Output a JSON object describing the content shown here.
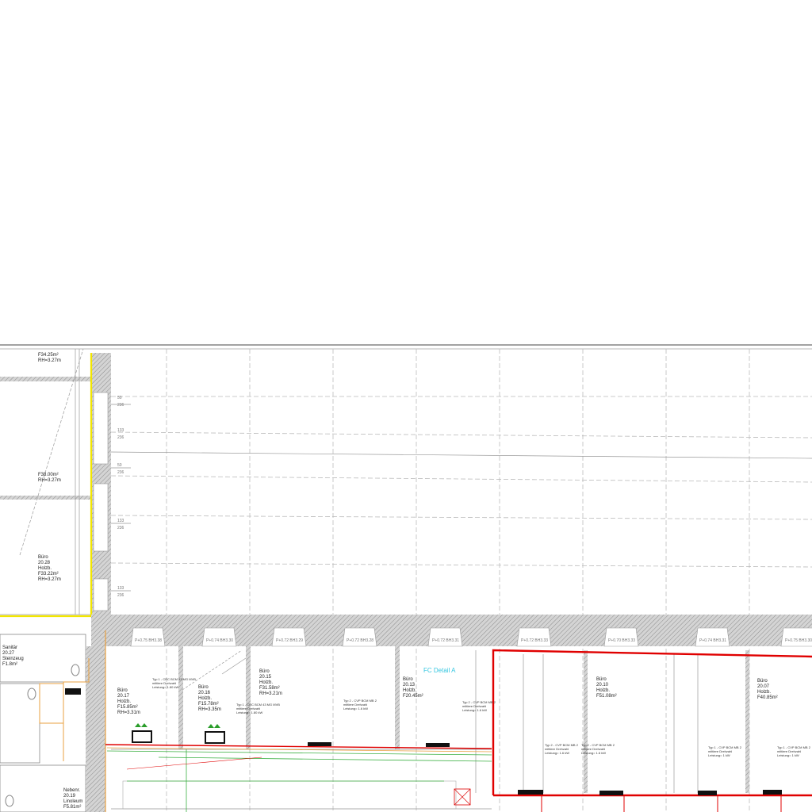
{
  "drawing": {
    "colors": {
      "wall_hatch": "#9a9a9a",
      "boundary_yellow": "#f2e600",
      "detail_red": "#e00000",
      "duct_green": "#3cb043",
      "pipe_orange": "#e8a040",
      "note_blue": "#1a7fd0",
      "detail_cyan": "#33c6e0"
    },
    "detail_label": "FC Detail A",
    "rooms": [
      {
        "name": "Büro",
        "number": "20.17",
        "floor": "Holzb.",
        "area": "F15.85m²",
        "height": "RH=3.31m"
      },
      {
        "name": "Büro",
        "number": "20.16",
        "floor": "Holzb.",
        "area": "F15.78m²",
        "height": "RH=3.35m"
      },
      {
        "name": "Büro",
        "number": "20.15",
        "floor": "Holzb.",
        "area": "F31.58m²",
        "height": "RH=3.21m"
      },
      {
        "name": "Büro",
        "number": "20.13",
        "floor": "Holzb.",
        "area": "F20.45m²",
        "height": ""
      },
      {
        "name": "Büro",
        "number": "20.10",
        "floor": "Holzb.",
        "area": "F51.08m²",
        "height": ""
      },
      {
        "name": "Büro",
        "number": "20.07",
        "floor": "Holzb.",
        "area": "F40.85m²",
        "height": ""
      },
      {
        "name": "Büro",
        "number": "20.28",
        "floor": "Holzb.",
        "area": "F33.22m²",
        "height": "RH=3.27m"
      },
      {
        "name": "Sanitär",
        "number": "20.27",
        "floor": "Steinzeug",
        "area": "F1.8m²",
        "height": ""
      },
      {
        "name": "Nebenr.",
        "number": "20.19",
        "floor": "Linoleum",
        "area": "F5.81m²",
        "height": ""
      }
    ],
    "top_left_areas": [
      {
        "area": "F34.25m²",
        "height": "RH=3.27m"
      },
      {
        "area": "F38.00m²",
        "height": "RH=3.27m"
      }
    ],
    "window_labels": [
      "P+0.75 BH3.38",
      "P+0.74 BH3.30",
      "P+0.72 BH3.29",
      "P+0.72 BH3.28",
      "P+0.72 BH3.31",
      "P+0.72 BH3.33",
      "P+0.70 BH3.33",
      "P+0.74 BH3.31",
      "P+0.75 BH3.30"
    ],
    "dimension_pairs": [
      [
        "50",
        "236"
      ],
      [
        "133",
        "236"
      ],
      [
        "50",
        "236"
      ],
      [
        "133",
        "236"
      ],
      [
        "133",
        "236"
      ]
    ],
    "units": [
      {
        "type": "Typ 1 - CRC BCM 43 MG MVB",
        "info": "mittlere Drehzahl",
        "power": "Leistung= 1.80 kW"
      },
      {
        "type": "Typ 1 - CRC BCM 43 MG MVB",
        "info": "mittlere Drehzahl",
        "power": "Leistung= 1.80 kW"
      },
      {
        "type": "Typ 2 - CVP BCM MB 2",
        "info": "mittlere Drehzahl",
        "power": "Leistung= 1.6 kW"
      },
      {
        "type": "Typ 2 - CVP BCM MB 2",
        "info": "mittlere Drehzahl",
        "power": "Leistung= 1.6 kW"
      },
      {
        "type": "Typ 2 - CVP BCM MB 2",
        "info": "mittlere Drehzahl",
        "power": "Leistung= 1.6 kW"
      },
      {
        "type": "Typ 2 - CVP BCM MB 2",
        "info": "mittlere Drehzahl",
        "power": "Leistung= 1.6 kW"
      },
      {
        "type": "Typ 1 - CVP BCM MB 2",
        "info": "mittlere Drehzahl",
        "power": "Leistung= 1 kW"
      },
      {
        "type": "Typ 1 - CVP BCM MB 2",
        "info": "mittlere Drehzahl",
        "power": "Leistung= 1 kW"
      }
    ]
  }
}
